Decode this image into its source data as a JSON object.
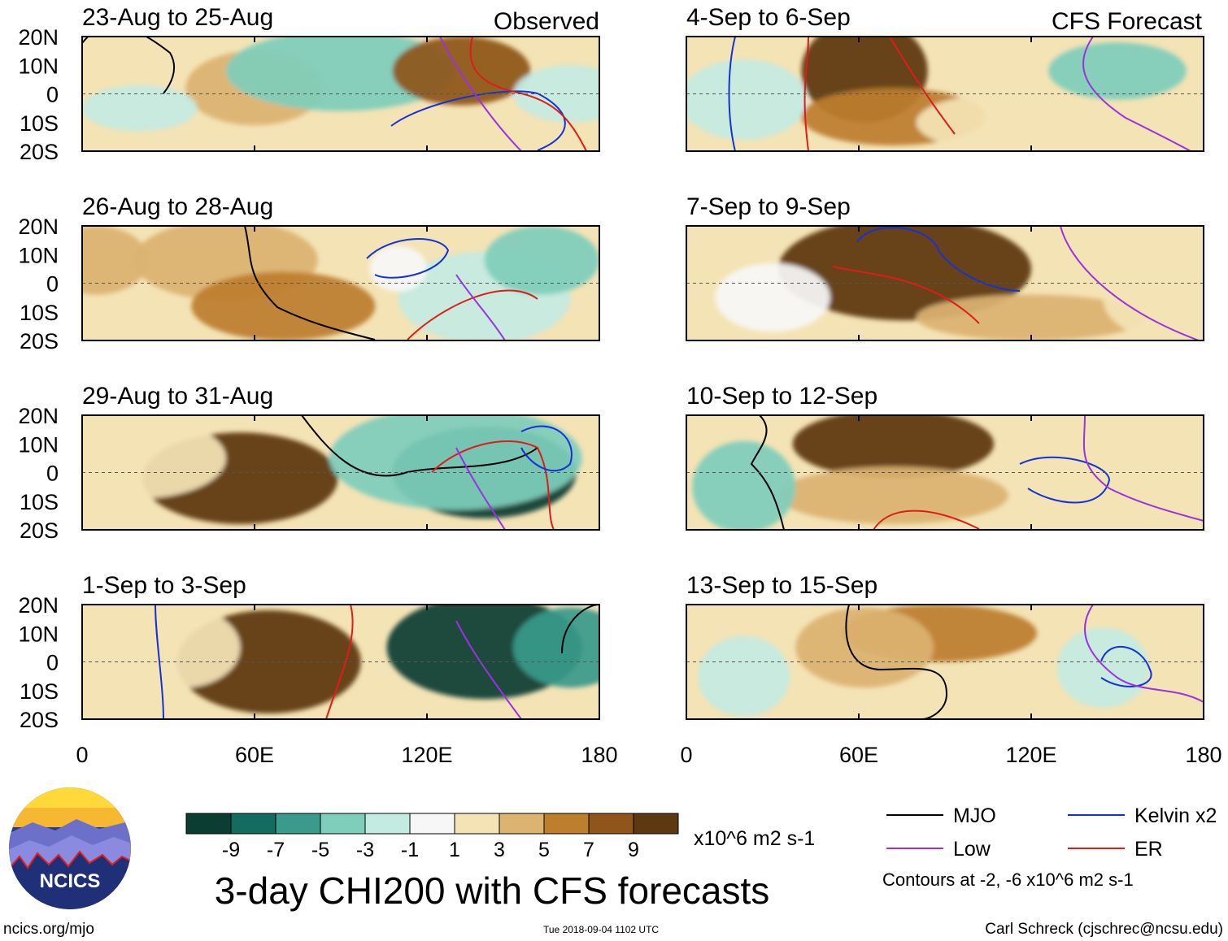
{
  "title": "3-day CHI200 with CFS forecasts",
  "chart_data": {
    "type": "heatmap",
    "variable": "CHI200 (200-hPa velocity potential) anomaly",
    "units": "x10^6 m2 s-1",
    "column_headers": {
      "left": "Observed",
      "right": "CFS Forecast"
    },
    "panels": [
      {
        "title": "23-Aug to 25-Aug",
        "source": "Observed"
      },
      {
        "title": "4-Sep to 6-Sep",
        "source": "CFS Forecast"
      },
      {
        "title": "26-Aug to 28-Aug",
        "source": "Observed"
      },
      {
        "title": "7-Sep to 9-Sep",
        "source": "CFS Forecast"
      },
      {
        "title": "29-Aug to 31-Aug",
        "source": "Observed"
      },
      {
        "title": "10-Sep to 12-Sep",
        "source": "CFS Forecast"
      },
      {
        "title": "1-Sep to 3-Sep",
        "source": "Observed"
      },
      {
        "title": "13-Sep to 15-Sep",
        "source": "CFS Forecast"
      }
    ],
    "x_axis": {
      "ticks": [
        "0",
        "60E",
        "120E",
        "180"
      ],
      "range": [
        0,
        180
      ]
    },
    "y_axis": {
      "ticks": [
        "20N",
        "10N",
        "0",
        "10S",
        "20S"
      ],
      "range": [
        -20,
        20
      ]
    },
    "colorbar": {
      "labels": [
        "-9",
        "-7",
        "-5",
        "-3",
        "-1",
        "1",
        "3",
        "5",
        "7",
        "9"
      ],
      "colors": [
        "#0b3d33",
        "#146b5f",
        "#3a9a8b",
        "#7fcdbb",
        "#c4ebe2",
        "#f7f7f7",
        "#f4e3b5",
        "#dcb371",
        "#bd7e2e",
        "#8f551a",
        "#5e3811"
      ],
      "units": "x10^6 m2 s-1"
    },
    "legend": [
      {
        "label": "MJO",
        "color": "#000000"
      },
      {
        "label": "Kelvin x2",
        "color": "#1432d6"
      },
      {
        "label": "Low",
        "color": "#9a32e0"
      },
      {
        "label": "ER",
        "color": "#e01b1b"
      }
    ],
    "contour_note": "Contours at -2, -6 x10^6 m2 s-1"
  },
  "footer": {
    "url": "ncics.org/mjo",
    "timestamp": "Tue 2018-09-04 1102 UTC",
    "credit": "Carl Schreck (cjschrec@ncsu.edu)",
    "logo_text": "NCICS"
  }
}
